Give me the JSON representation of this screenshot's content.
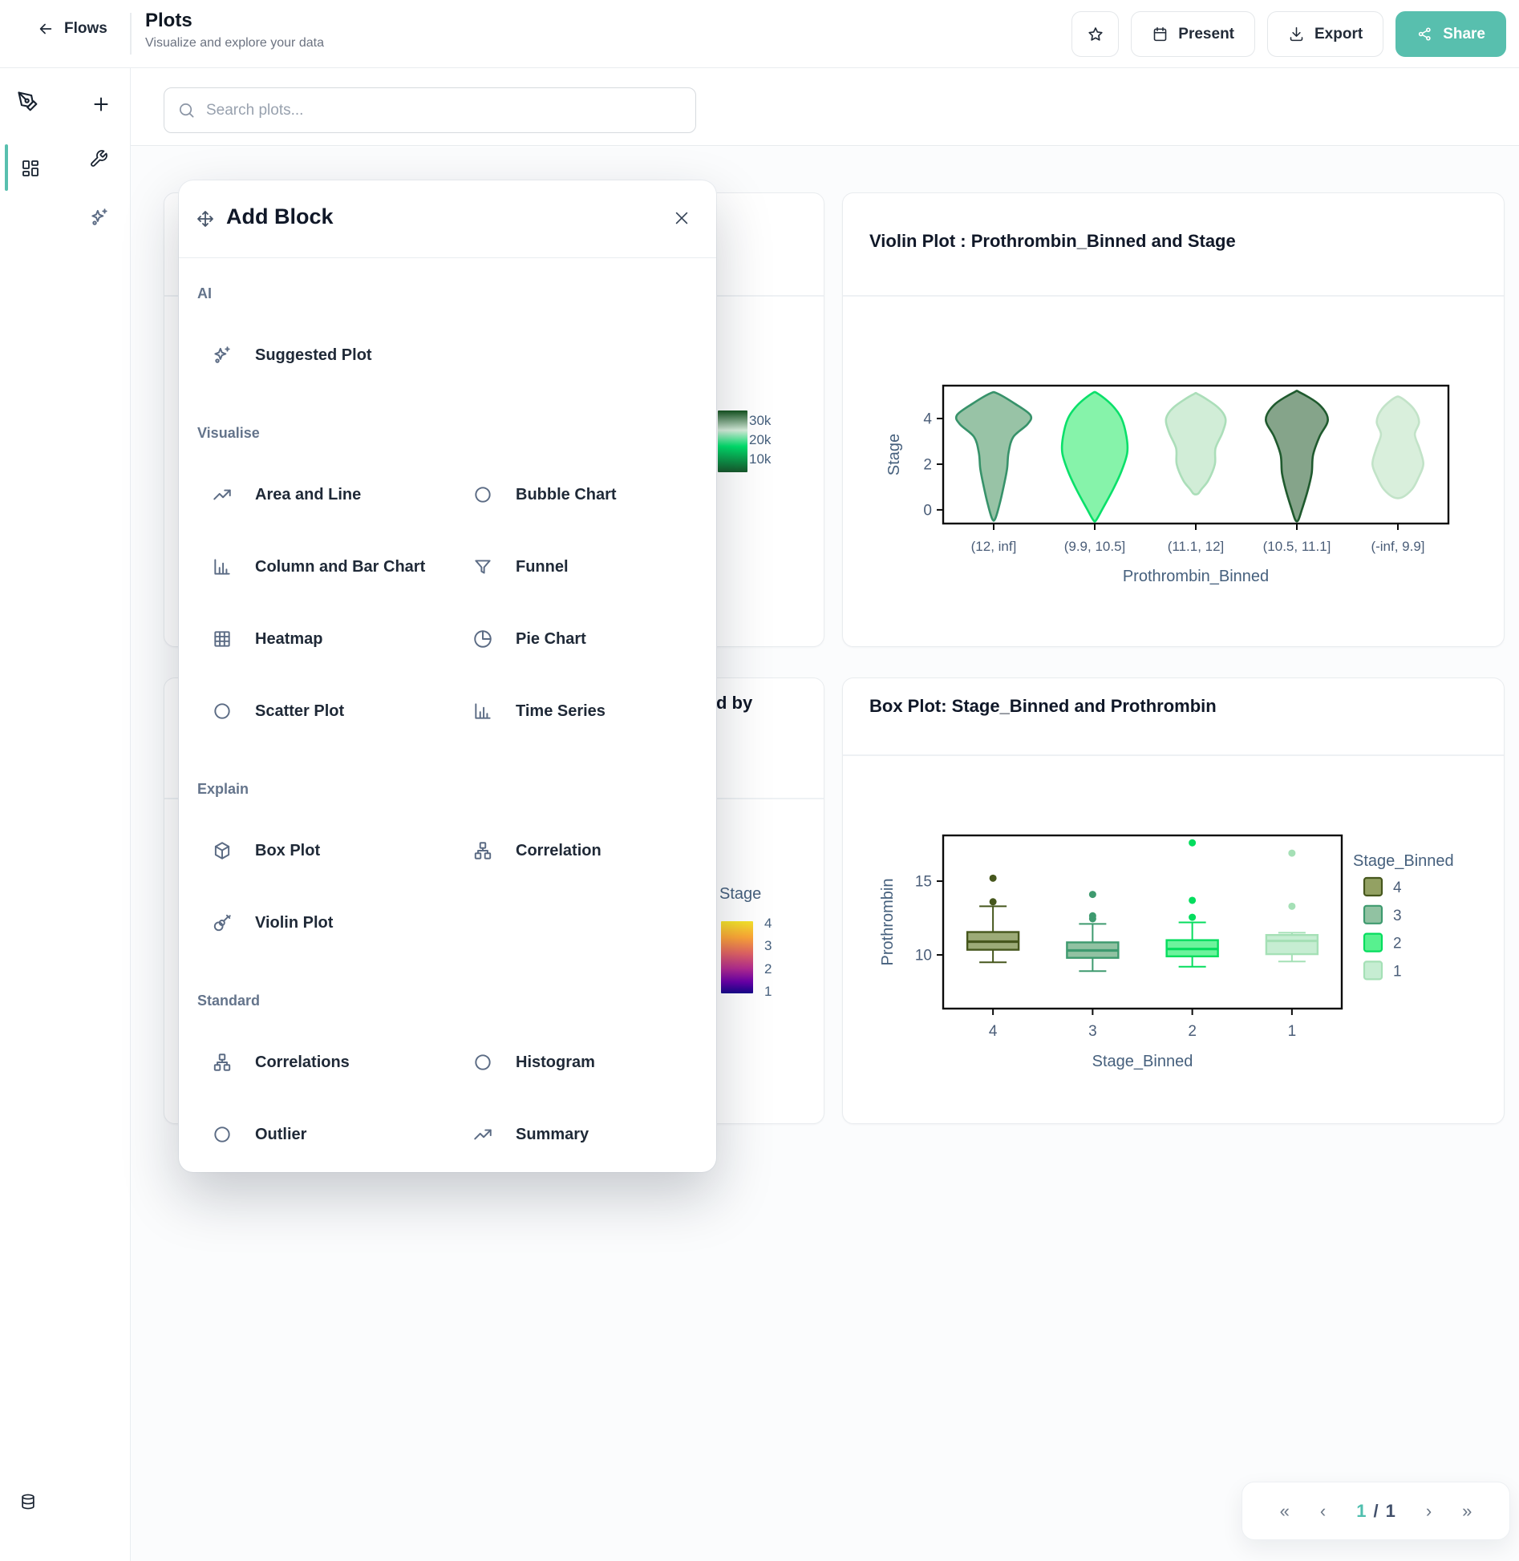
{
  "theme": {
    "accent": "#58bfae"
  },
  "header": {
    "back_label": "Flows",
    "title": "Plots",
    "subtitle": "Visualize and explore your data",
    "actions": {
      "present_label": "Present",
      "export_label": "Export",
      "share_label": "Share"
    }
  },
  "search": {
    "placeholder": "Search plots..."
  },
  "modal": {
    "title": "Add Block",
    "sections": [
      {
        "label": "AI",
        "items": [
          {
            "label": "Suggested Plot",
            "icon": "sparkles-icon"
          }
        ]
      },
      {
        "label": "Visualise",
        "items": [
          {
            "label": "Area and Line",
            "icon": "trend-line-icon"
          },
          {
            "label": "Bubble Chart",
            "icon": "circle-icon"
          },
          {
            "label": "Column and Bar Chart",
            "icon": "bar-chart-icon"
          },
          {
            "label": "Funnel",
            "icon": "funnel-icon"
          },
          {
            "label": "Heatmap",
            "icon": "heatmap-grid-icon"
          },
          {
            "label": "Pie Chart",
            "icon": "pie-chart-icon"
          },
          {
            "label": "Scatter Plot",
            "icon": "circle-icon"
          },
          {
            "label": "Time Series",
            "icon": "bar-chart-icon"
          }
        ]
      },
      {
        "label": "Explain",
        "items": [
          {
            "label": "Box Plot",
            "icon": "cube-icon"
          },
          {
            "label": "Correlation",
            "icon": "network-icon"
          },
          {
            "label": "Violin Plot",
            "icon": "guitar-icon"
          }
        ]
      },
      {
        "label": "Standard",
        "items": [
          {
            "label": "Correlations",
            "icon": "network-icon"
          },
          {
            "label": "Histogram",
            "icon": "circle-icon"
          },
          {
            "label": "Outlier",
            "icon": "circle-icon"
          },
          {
            "label": "Summary",
            "icon": "trend-line-icon"
          }
        ]
      }
    ]
  },
  "partial_cards": {
    "heatmap_card": {
      "colorbar": {
        "labels": [
          "30k",
          "20k",
          "10k"
        ],
        "stops": [
          {
            "c": "#14531f",
            "p": 0
          },
          {
            "c": "#d8efdc",
            "p": 32
          },
          {
            "c": "#00e16b",
            "p": 58
          },
          {
            "c": "#17572b",
            "p": 100
          }
        ]
      }
    },
    "grouped_card": {
      "title_tail": "d by",
      "legend_title": "Stage",
      "colorbar": {
        "labels": [
          "4",
          "3",
          "2",
          "1"
        ],
        "stops": [
          {
            "c": "#f4e42a",
            "p": 0
          },
          {
            "c": "#fca636",
            "p": 22
          },
          {
            "c": "#e16462",
            "p": 44
          },
          {
            "c": "#b12a90",
            "p": 66
          },
          {
            "c": "#6a00a8",
            "p": 84
          },
          {
            "c": "#150789",
            "p": 100
          }
        ]
      }
    }
  },
  "pagination": {
    "first": "«",
    "prev": "‹",
    "current": "1",
    "separator": "/",
    "total": "1",
    "next": "›",
    "last": "»"
  },
  "chart_data": [
    {
      "type": "violin",
      "title": "Violin Plot : Prothrombin_Binned and Stage",
      "xlabel": "Prothrombin_Binned",
      "ylabel": "Stage",
      "categories": [
        "(12, inf]",
        "(9.9, 10.5]",
        "(11.1, 12]",
        "(10.5, 11.1]",
        "(-inf, 9.9]"
      ],
      "yticks": [
        0,
        2,
        4
      ],
      "ylim": [
        -0.6,
        5.44
      ],
      "grid": false,
      "violins": [
        {
          "category": "(12, inf]",
          "fill": "#8fbe9e",
          "stroke": "#37926a",
          "profile": [
            [
              5.1,
              0.05
            ],
            [
              4.65,
              0.3
            ],
            [
              4.15,
              0.52
            ],
            [
              3.75,
              0.48
            ],
            [
              3.2,
              0.28
            ],
            [
              2.5,
              0.21
            ],
            [
              1.8,
              0.19
            ],
            [
              1.0,
              0.14
            ],
            [
              0.2,
              0.08
            ],
            [
              -0.4,
              0.02
            ]
          ]
        },
        {
          "category": "(9.9, 10.5]",
          "fill": "#7cf2a3",
          "stroke": "#0ae06a",
          "profile": [
            [
              5.1,
              0.04
            ],
            [
              4.6,
              0.24
            ],
            [
              4.0,
              0.38
            ],
            [
              3.2,
              0.45
            ],
            [
              2.5,
              0.46
            ],
            [
              1.7,
              0.38
            ],
            [
              0.9,
              0.26
            ],
            [
              0.1,
              0.12
            ],
            [
              -0.45,
              0.02
            ]
          ]
        },
        {
          "category": "(11.1, 12]",
          "fill": "#cdebd4",
          "stroke": "#abdeb9",
          "profile": [
            [
              5.05,
              0.04
            ],
            [
              4.5,
              0.31
            ],
            [
              4.0,
              0.42
            ],
            [
              3.4,
              0.38
            ],
            [
              2.7,
              0.28
            ],
            [
              2.0,
              0.27
            ],
            [
              1.3,
              0.18
            ],
            [
              0.9,
              0.08
            ],
            [
              0.7,
              0.03
            ]
          ]
        },
        {
          "category": "(10.5, 11.1]",
          "fill": "#7b9c80",
          "stroke": "#1f5a2e",
          "profile": [
            [
              5.15,
              0.04
            ],
            [
              4.6,
              0.32
            ],
            [
              3.95,
              0.44
            ],
            [
              3.2,
              0.32
            ],
            [
              2.4,
              0.23
            ],
            [
              1.6,
              0.21
            ],
            [
              0.8,
              0.15
            ],
            [
              0.0,
              0.07
            ],
            [
              -0.45,
              0.02
            ]
          ]
        },
        {
          "category": "(-inf, 9.9]",
          "fill": "#d6eed9",
          "stroke": "#c2e3c8",
          "profile": [
            [
              4.9,
              0.05
            ],
            [
              4.4,
              0.23
            ],
            [
              3.85,
              0.3
            ],
            [
              3.3,
              0.24
            ],
            [
              2.65,
              0.31
            ],
            [
              2.0,
              0.36
            ],
            [
              1.4,
              0.29
            ],
            [
              0.9,
              0.2
            ],
            [
              0.55,
              0.06
            ]
          ]
        }
      ]
    },
    {
      "type": "box",
      "title": "Box Plot: Stage_Binned and Prothrombin",
      "xlabel": "Stage_Binned",
      "ylabel": "Prothrombin",
      "categories": [
        "4",
        "3",
        "2",
        "1"
      ],
      "yticks": [
        10,
        15
      ],
      "ylim": [
        6.36,
        18.1
      ],
      "grid": false,
      "boxes": [
        {
          "category": "4",
          "fill": "#9cab77",
          "stroke": "#46571d",
          "low": 9.5,
          "q1": 10.35,
          "median": 10.9,
          "q3": 11.55,
          "high": 13.3,
          "outliers": [
            13.6,
            15.2
          ]
        },
        {
          "category": "3",
          "fill": "#91c2a2",
          "stroke": "#3e9a6f",
          "low": 8.9,
          "q1": 9.8,
          "median": 10.3,
          "q3": 10.85,
          "high": 12.1,
          "outliers": [
            12.45,
            12.65,
            14.1
          ]
        },
        {
          "category": "2",
          "fill": "#6df39c",
          "stroke": "#05dd5e",
          "low": 9.2,
          "q1": 9.9,
          "median": 10.4,
          "q3": 11.0,
          "high": 12.2,
          "outliers": [
            12.55,
            13.7,
            17.6
          ]
        },
        {
          "category": "1",
          "fill": "#c6edd2",
          "stroke": "#a5e0b6",
          "low": 9.55,
          "q1": 10.05,
          "median": 10.95,
          "q3": 11.35,
          "high": 11.5,
          "outliers": [
            13.3,
            16.9
          ]
        }
      ],
      "legend": {
        "title": "Stage_Binned",
        "position": "right",
        "entries": [
          {
            "label": "4",
            "fill": "#93a163",
            "stroke": "#46571d"
          },
          {
            "label": "3",
            "fill": "#91c2a2",
            "stroke": "#3e9a6f"
          },
          {
            "label": "2",
            "fill": "#58f18f",
            "stroke": "#05dd5e"
          },
          {
            "label": "1",
            "fill": "#c6edd2",
            "stroke": "#a5e0b6"
          }
        ]
      }
    }
  ]
}
